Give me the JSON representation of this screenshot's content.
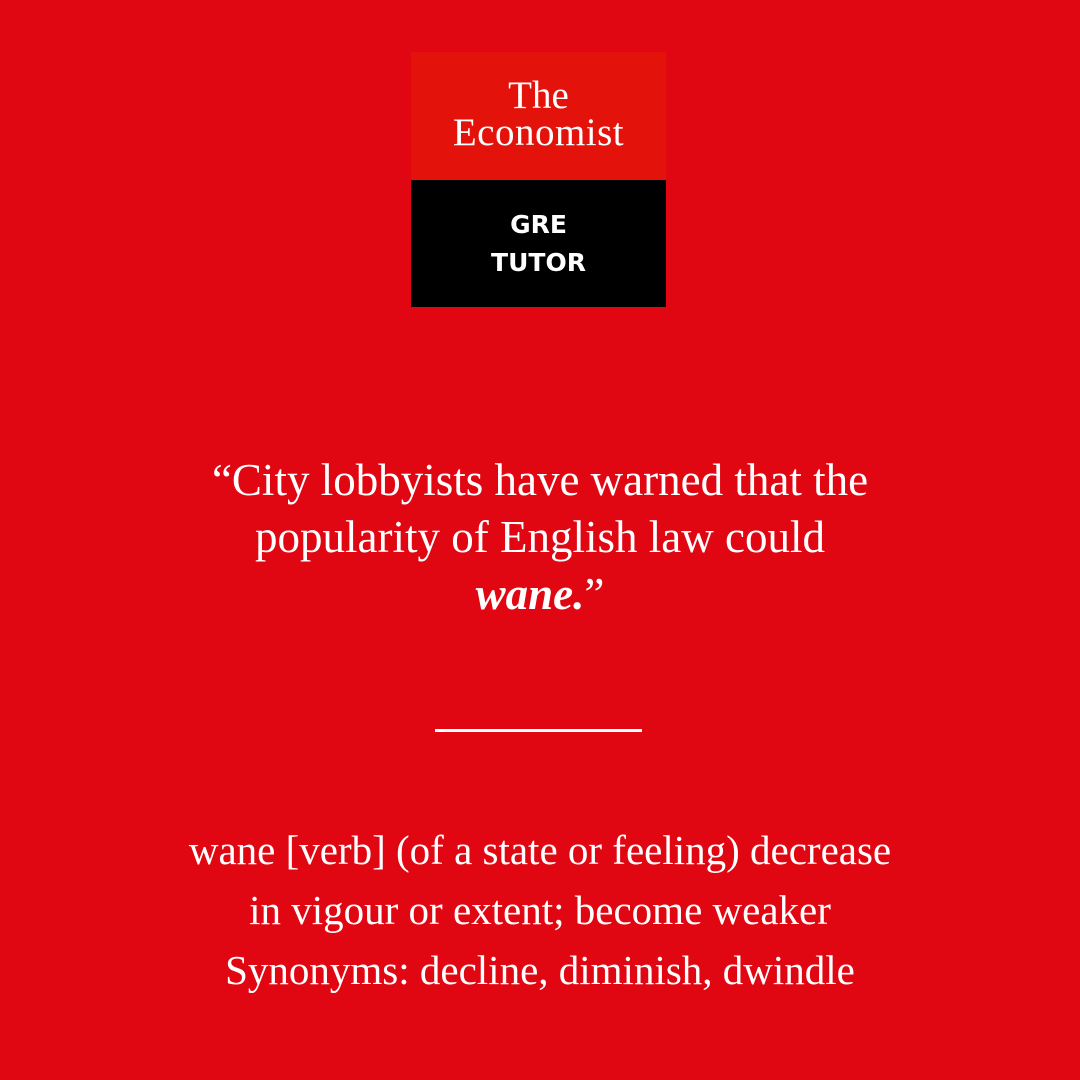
{
  "logo": {
    "title_line1": "The",
    "title_line2": "Economist",
    "sub_line1": "GRE",
    "sub_line2": "TUTOR"
  },
  "quote": {
    "open_mark": "“",
    "line1": "City lobbyists have warned that the",
    "line2": "popularity of English law could",
    "highlight_word": "wane.",
    "close_mark": "”"
  },
  "definition": {
    "line1": "wane [verb] (of a state or feeling) decrease",
    "line2": "in vigour or extent; become weaker",
    "line3": "Synonyms: decline, diminish, dwindle"
  },
  "colors": {
    "background": "#e00712",
    "logo_red": "#e3120b",
    "logo_black": "#000000",
    "text": "#ffffff"
  }
}
